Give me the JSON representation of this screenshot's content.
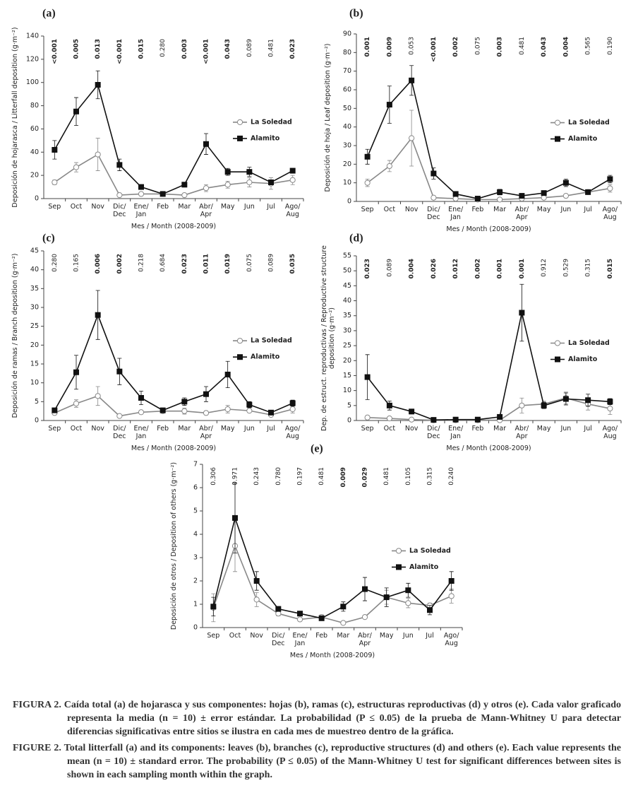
{
  "chart_data": [
    {
      "type": "line",
      "title": "(a)",
      "ylabel": "Deposición de hojarasca / Litterfall deposition (g·m⁻²)",
      "xlabel": "Mes / Month (2008-2009)",
      "categories": [
        "Sep",
        "Oct",
        "Nov",
        "Dic/\nDec",
        "Ene/\nJan",
        "Feb",
        "Mar",
        "Abr/\nApr",
        "May",
        "Jun",
        "Jul",
        "Ago/\nAug"
      ],
      "p_values": [
        "<0.001",
        "0.005",
        "0.013",
        "<0.001",
        "0.015",
        "0.280",
        "0.003",
        "<0.001",
        "0.043",
        "0.089",
        "0.481",
        "0.023"
      ],
      "p_significant": [
        true,
        true,
        true,
        true,
        true,
        false,
        true,
        true,
        true,
        false,
        false,
        true
      ],
      "ylim": [
        0,
        140
      ],
      "yticks": [
        0,
        20,
        40,
        60,
        80,
        100,
        120,
        140
      ],
      "legend": "right",
      "series": [
        {
          "name": "La Soledad",
          "color": "#888888",
          "marker": "open-circle",
          "values": [
            14,
            27,
            38,
            3,
            4,
            4,
            3,
            9,
            12,
            14,
            13,
            16
          ],
          "errors": [
            2,
            4,
            14,
            1,
            1,
            1,
            1,
            3,
            3,
            4,
            5,
            4
          ]
        },
        {
          "name": "Alamito",
          "color": "#111111",
          "marker": "filled-square",
          "values": [
            42,
            75,
            98,
            29,
            10,
            4,
            12,
            47,
            23,
            23,
            14,
            24
          ],
          "errors": [
            8,
            12,
            12,
            5,
            2,
            1,
            2,
            9,
            3,
            4,
            2,
            2
          ]
        }
      ]
    },
    {
      "type": "line",
      "title": "(b)",
      "ylabel": "Deposición de hoja / Leaf deposition (g·m⁻²)",
      "xlabel": "Mes / Month (2008-2009)",
      "categories": [
        "Sep",
        "Oct",
        "Nov",
        "Dic/\nDec",
        "Ene/\nJan",
        "Feb",
        "Mar",
        "Abr/\nApr",
        "May",
        "Jun",
        "Jul",
        "Ago/\nAug"
      ],
      "p_values": [
        "0.001",
        "0.009",
        "0.053",
        "<0.001",
        "0.002",
        "0.075",
        "0.003",
        "0.481",
        "0.043",
        "0.004",
        "0.565",
        "0.190"
      ],
      "p_significant": [
        true,
        true,
        false,
        true,
        true,
        false,
        true,
        false,
        true,
        true,
        false,
        false
      ],
      "ylim": [
        0,
        90
      ],
      "yticks": [
        0,
        10,
        20,
        30,
        40,
        50,
        60,
        70,
        80,
        90
      ],
      "legend": "right",
      "series": [
        {
          "name": "La Soledad",
          "color": "#888888",
          "marker": "open-circle",
          "values": [
            10,
            19,
            34,
            2,
            1.5,
            1,
            1,
            1.5,
            2,
            3,
            5,
            7
          ],
          "errors": [
            2,
            3,
            15,
            1,
            0.5,
            0.5,
            0.5,
            0.5,
            0.5,
            1,
            1,
            2
          ]
        },
        {
          "name": "Alamito",
          "color": "#111111",
          "marker": "filled-square",
          "values": [
            24,
            52,
            65,
            15,
            4,
            1.5,
            5,
            3,
            4.5,
            10,
            5,
            12
          ],
          "errors": [
            4,
            10,
            8,
            3,
            1,
            0.5,
            1.5,
            1,
            1,
            2,
            1,
            2
          ]
        }
      ]
    },
    {
      "type": "line",
      "title": "(c)",
      "ylabel": "Deposición de ramas / Branch deposition (g·m⁻²)",
      "xlabel": "Mes / Month (2008-2009)",
      "categories": [
        "Sep",
        "Oct",
        "Nov",
        "Dic/\nDec",
        "Ene/\nJan",
        "Feb",
        "Mar",
        "Abr/\nApr",
        "May",
        "Jun",
        "Jul",
        "Ago/\nAug"
      ],
      "p_values": [
        "0.280",
        "0.165",
        "0.006",
        "0.002",
        "0.218",
        "0.684",
        "0.023",
        "0.011",
        "0.019",
        "0.075",
        "0.089",
        "0.035"
      ],
      "p_significant": [
        false,
        false,
        true,
        true,
        false,
        false,
        true,
        true,
        true,
        false,
        false,
        true
      ],
      "ylim": [
        0,
        45
      ],
      "yticks": [
        0,
        5,
        10,
        15,
        20,
        25,
        30,
        35,
        40,
        45
      ],
      "legend": "right",
      "series": [
        {
          "name": "La Soledad",
          "color": "#888888",
          "marker": "open-circle",
          "values": [
            2,
            4.5,
            6.5,
            1.2,
            2.2,
            2.5,
            2.5,
            2,
            3,
            2.6,
            1.5,
            3
          ],
          "errors": [
            0.5,
            1,
            2.5,
            0.3,
            0.5,
            0.5,
            0.8,
            0.5,
            1,
            0.5,
            0.5,
            1
          ]
        },
        {
          "name": "Alamito",
          "color": "#111111",
          "marker": "filled-square",
          "values": [
            2.7,
            12.8,
            28,
            13,
            6,
            2.7,
            5,
            7,
            12.2,
            4.2,
            2.1,
            4.6
          ],
          "errors": [
            0.5,
            4.5,
            6.5,
            3.5,
            1.8,
            0.5,
            1,
            2,
            3.5,
            0.8,
            0.5,
            0.8
          ]
        }
      ]
    },
    {
      "type": "line",
      "title": "(d)",
      "ylabel": "Dep. de estruct. reproductivas / Reproductive structure\ndeposition (g·m⁻²)",
      "xlabel": "Mes / Month (2008-2009)",
      "categories": [
        "Sep",
        "Oct",
        "Nov",
        "Dic/\nDec",
        "Ene/\nJan",
        "Feb",
        "Mar",
        "Abr/\nApr",
        "May",
        "Jun",
        "Jul",
        "Ago/\nAug"
      ],
      "p_values": [
        "0.023",
        "0.089",
        "0.004",
        "0.026",
        "0.012",
        "0.002",
        "0.001",
        "0.001",
        "0.912",
        "0.529",
        "0.315",
        "0.015"
      ],
      "p_significant": [
        true,
        false,
        true,
        true,
        true,
        true,
        true,
        true,
        false,
        false,
        false,
        true
      ],
      "ylim": [
        0,
        55
      ],
      "yticks": [
        0,
        5,
        10,
        15,
        20,
        25,
        30,
        35,
        40,
        45,
        50,
        55
      ],
      "legend": "right",
      "series": [
        {
          "name": "La Soledad",
          "color": "#888888",
          "marker": "open-circle",
          "values": [
            1,
            0.7,
            0.3,
            0.1,
            0.1,
            0.1,
            0.1,
            5,
            5.5,
            7.5,
            5.5,
            4
          ],
          "errors": [
            0.3,
            0.3,
            0.2,
            0.1,
            0.1,
            0.1,
            0.1,
            2.5,
            1,
            2,
            2,
            2
          ]
        },
        {
          "name": "Alamito",
          "color": "#111111",
          "marker": "filled-square",
          "values": [
            14.5,
            5,
            3,
            0.2,
            0.3,
            0.3,
            1.2,
            36,
            5,
            7.2,
            6.8,
            6.3
          ],
          "errors": [
            7.5,
            1.5,
            0.8,
            0.1,
            0.2,
            0.2,
            0.5,
            9.5,
            1,
            2,
            2,
            1
          ]
        }
      ]
    },
    {
      "type": "line",
      "title": "(e)",
      "ylabel": "Deposición de otros / Deposition of others (g·m⁻²)",
      "xlabel": "Mes / Month (2008-2009)",
      "categories": [
        "Sep",
        "Oct",
        "Nov",
        "Dic/\nDec",
        "Ene/\nJan",
        "Feb",
        "Mar",
        "Abr/\nApr",
        "May",
        "Jun",
        "Jul",
        "Ago/\nAug"
      ],
      "p_values": [
        "0.306",
        "0.971",
        "0.243",
        "0.780",
        "0.197",
        "0.481",
        "0.009",
        "0.029",
        "0.481",
        "0.105",
        "0.315",
        "0.240"
      ],
      "p_significant": [
        false,
        false,
        false,
        false,
        false,
        false,
        true,
        true,
        false,
        false,
        false,
        false
      ],
      "ylim": [
        0,
        7
      ],
      "yticks": [
        0,
        1,
        2,
        3,
        4,
        5,
        6,
        7
      ],
      "legend": "right",
      "series": [
        {
          "name": "La Soledad",
          "color": "#888888",
          "marker": "open-circle",
          "values": [
            0.85,
            3.5,
            1.2,
            0.6,
            0.35,
            0.45,
            0.2,
            0.45,
            1.3,
            1.05,
            0.95,
            1.35
          ],
          "errors": [
            0.6,
            1.1,
            0.3,
            0.1,
            0.05,
            0.1,
            0.05,
            0.05,
            0.3,
            0.2,
            0.1,
            0.3
          ]
        },
        {
          "name": "Alamito",
          "color": "#111111",
          "marker": "filled-square",
          "values": [
            0.9,
            4.7,
            2.0,
            0.8,
            0.6,
            0.4,
            0.9,
            1.65,
            1.3,
            1.6,
            0.75,
            2.0
          ],
          "errors": [
            0.4,
            1.5,
            0.4,
            0.1,
            0.1,
            0.1,
            0.2,
            0.5,
            0.4,
            0.3,
            0.2,
            0.4
          ]
        }
      ]
    }
  ],
  "caption": [
    {
      "label": "FIGURA 2.",
      "text": "Caída total (a) de hojarasca y sus componentes: hojas (b), ramas (c), estructuras reproductivas (d) y otros (e). Cada valor graficado representa la media (n = 10) ± error estándar. La probabilidad (P ≤ 0.05) de la prueba de Mann-Whitney U para detectar diferencias significativas entre sitios se ilustra en cada mes de muestreo dentro de la gráfica."
    },
    {
      "label": "FIGURE 2.",
      "text": "Total litterfall (a) and its components: leaves (b), branches (c), reproductive structures (d) and others (e). Each value represents the mean (n = 10) ± standard error. The probability (P ≤ 0.05) of the Mann-Whitney U test for significant differences between sites is shown in each sampling month within the graph."
    }
  ]
}
